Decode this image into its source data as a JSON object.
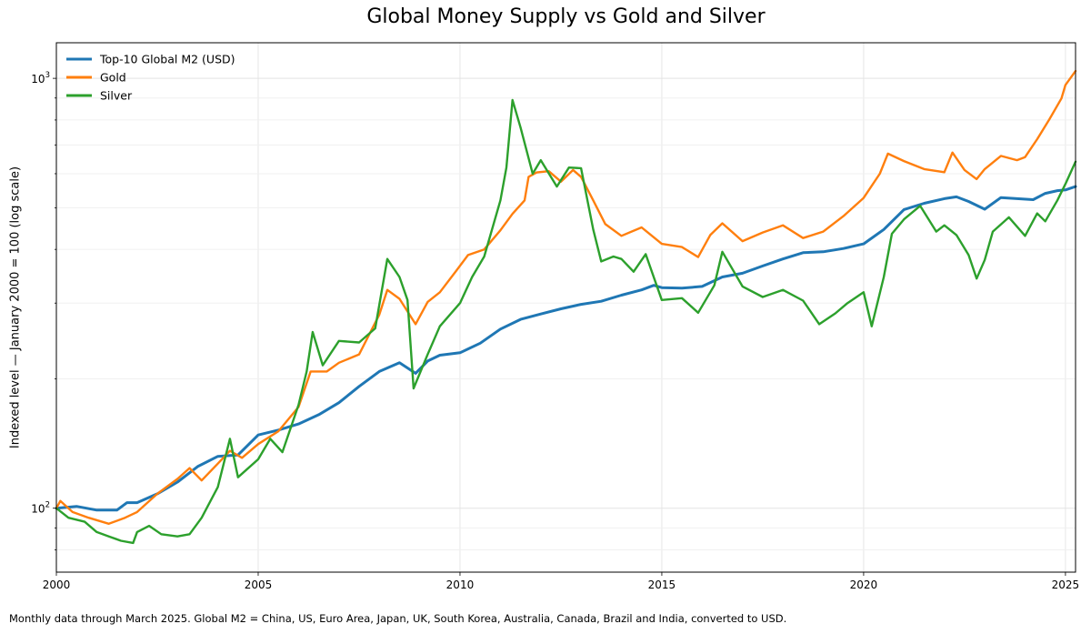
{
  "chart_data": {
    "type": "line",
    "title": "Global Money Supply vs Gold and Silver",
    "ylabel": "Indexed level — January 2000 = 100 (log scale)",
    "xlabel": "",
    "yscale": "log",
    "xlim": [
      2000.0,
      2025.25
    ],
    "ylim": [
      71,
      1210
    ],
    "xticks": [
      2000,
      2005,
      2010,
      2015,
      2020,
      2025
    ],
    "yticks": [
      100,
      1000
    ],
    "ytick_labels": [
      {
        "base": "10",
        "exp": "2"
      },
      {
        "base": "10",
        "exp": "3"
      }
    ],
    "grid": true,
    "legend": "top-left",
    "footnote": "Monthly data through March 2025. Global M2 = China, US, Euro Area, Japan, UK, South Korea, Australia, Canada, Brazil and India, converted to USD.",
    "series": [
      {
        "name": "Top-10 Global M2 (USD)",
        "color": "#1f77b4",
        "points": [
          [
            2000.0,
            100
          ],
          [
            2000.5,
            101
          ],
          [
            2001.0,
            99
          ],
          [
            2001.5,
            99
          ],
          [
            2001.75,
            103
          ],
          [
            2002.0,
            103
          ],
          [
            2002.5,
            108
          ],
          [
            2003.0,
            115
          ],
          [
            2003.5,
            125
          ],
          [
            2004.0,
            132
          ],
          [
            2004.5,
            133
          ],
          [
            2005.0,
            148
          ],
          [
            2005.5,
            152
          ],
          [
            2006.0,
            157
          ],
          [
            2006.5,
            165
          ],
          [
            2007.0,
            176
          ],
          [
            2007.5,
            192
          ],
          [
            2008.0,
            208
          ],
          [
            2008.5,
            218
          ],
          [
            2008.9,
            206
          ],
          [
            2009.2,
            220
          ],
          [
            2009.5,
            227
          ],
          [
            2010.0,
            230
          ],
          [
            2010.5,
            242
          ],
          [
            2011.0,
            261
          ],
          [
            2011.5,
            275
          ],
          [
            2012.0,
            283
          ],
          [
            2012.5,
            291
          ],
          [
            2013.0,
            298
          ],
          [
            2013.5,
            303
          ],
          [
            2014.0,
            313
          ],
          [
            2014.5,
            322
          ],
          [
            2014.8,
            330
          ],
          [
            2015.0,
            326
          ],
          [
            2015.5,
            325
          ],
          [
            2016.0,
            328
          ],
          [
            2016.5,
            345
          ],
          [
            2017.0,
            352
          ],
          [
            2017.5,
            366
          ],
          [
            2018.0,
            380
          ],
          [
            2018.5,
            393
          ],
          [
            2019.0,
            395
          ],
          [
            2019.5,
            402
          ],
          [
            2020.0,
            412
          ],
          [
            2020.5,
            445
          ],
          [
            2021.0,
            495
          ],
          [
            2021.5,
            512
          ],
          [
            2022.0,
            525
          ],
          [
            2022.3,
            530
          ],
          [
            2022.6,
            517
          ],
          [
            2023.0,
            496
          ],
          [
            2023.4,
            528
          ],
          [
            2023.8,
            525
          ],
          [
            2024.2,
            522
          ],
          [
            2024.5,
            540
          ],
          [
            2024.8,
            548
          ],
          [
            2025.0,
            550
          ],
          [
            2025.25,
            560
          ]
        ]
      },
      {
        "name": "Gold",
        "color": "#ff7f0e",
        "points": [
          [
            2000.0,
            100
          ],
          [
            2000.1,
            104
          ],
          [
            2000.4,
            98
          ],
          [
            2000.8,
            95
          ],
          [
            2001.3,
            92
          ],
          [
            2001.7,
            95
          ],
          [
            2002.0,
            98
          ],
          [
            2002.5,
            108
          ],
          [
            2003.0,
            117
          ],
          [
            2003.3,
            124
          ],
          [
            2003.6,
            116
          ],
          [
            2004.0,
            127
          ],
          [
            2004.3,
            136
          ],
          [
            2004.6,
            131
          ],
          [
            2005.0,
            141
          ],
          [
            2005.5,
            151
          ],
          [
            2006.0,
            172
          ],
          [
            2006.3,
            208
          ],
          [
            2006.7,
            208
          ],
          [
            2007.0,
            218
          ],
          [
            2007.5,
            228
          ],
          [
            2008.0,
            282
          ],
          [
            2008.2,
            322
          ],
          [
            2008.5,
            307
          ],
          [
            2008.9,
            268
          ],
          [
            2009.2,
            302
          ],
          [
            2009.5,
            318
          ],
          [
            2009.9,
            356
          ],
          [
            2010.2,
            388
          ],
          [
            2010.6,
            400
          ],
          [
            2011.0,
            443
          ],
          [
            2011.3,
            484
          ],
          [
            2011.6,
            520
          ],
          [
            2011.7,
            590
          ],
          [
            2011.9,
            604
          ],
          [
            2012.2,
            608
          ],
          [
            2012.5,
            575
          ],
          [
            2012.8,
            612
          ],
          [
            2013.0,
            590
          ],
          [
            2013.3,
            520
          ],
          [
            2013.6,
            458
          ],
          [
            2014.0,
            430
          ],
          [
            2014.5,
            450
          ],
          [
            2015.0,
            412
          ],
          [
            2015.5,
            405
          ],
          [
            2015.9,
            384
          ],
          [
            2016.2,
            432
          ],
          [
            2016.5,
            460
          ],
          [
            2017.0,
            418
          ],
          [
            2017.5,
            438
          ],
          [
            2018.0,
            455
          ],
          [
            2018.5,
            425
          ],
          [
            2019.0,
            440
          ],
          [
            2019.5,
            478
          ],
          [
            2020.0,
            527
          ],
          [
            2020.4,
            600
          ],
          [
            2020.6,
            668
          ],
          [
            2021.0,
            642
          ],
          [
            2021.5,
            615
          ],
          [
            2022.0,
            605
          ],
          [
            2022.2,
            672
          ],
          [
            2022.5,
            612
          ],
          [
            2022.8,
            583
          ],
          [
            2023.0,
            615
          ],
          [
            2023.4,
            660
          ],
          [
            2023.8,
            645
          ],
          [
            2024.0,
            656
          ],
          [
            2024.3,
            722
          ],
          [
            2024.6,
            802
          ],
          [
            2024.9,
            898
          ],
          [
            2025.0,
            965
          ],
          [
            2025.25,
            1040
          ]
        ]
      },
      {
        "name": "Silver",
        "color": "#2ca02c",
        "points": [
          [
            2000.0,
            100
          ],
          [
            2000.3,
            95
          ],
          [
            2000.7,
            93
          ],
          [
            2001.0,
            88
          ],
          [
            2001.3,
            86
          ],
          [
            2001.6,
            84
          ],
          [
            2001.9,
            83
          ],
          [
            2002.0,
            88
          ],
          [
            2002.3,
            91
          ],
          [
            2002.6,
            87
          ],
          [
            2003.0,
            86
          ],
          [
            2003.3,
            87
          ],
          [
            2003.6,
            95
          ],
          [
            2004.0,
            112
          ],
          [
            2004.3,
            145
          ],
          [
            2004.5,
            118
          ],
          [
            2005.0,
            130
          ],
          [
            2005.3,
            145
          ],
          [
            2005.6,
            135
          ],
          [
            2006.0,
            174
          ],
          [
            2006.2,
            208
          ],
          [
            2006.35,
            257
          ],
          [
            2006.6,
            215
          ],
          [
            2007.0,
            245
          ],
          [
            2007.5,
            243
          ],
          [
            2007.9,
            262
          ],
          [
            2008.2,
            380
          ],
          [
            2008.5,
            345
          ],
          [
            2008.7,
            305
          ],
          [
            2008.85,
            190
          ],
          [
            2009.2,
            228
          ],
          [
            2009.5,
            265
          ],
          [
            2010.0,
            300
          ],
          [
            2010.3,
            345
          ],
          [
            2010.6,
            385
          ],
          [
            2011.0,
            520
          ],
          [
            2011.15,
            620
          ],
          [
            2011.3,
            890
          ],
          [
            2011.5,
            768
          ],
          [
            2011.8,
            600
          ],
          [
            2012.0,
            645
          ],
          [
            2012.4,
            560
          ],
          [
            2012.7,
            620
          ],
          [
            2013.0,
            618
          ],
          [
            2013.3,
            445
          ],
          [
            2013.5,
            375
          ],
          [
            2013.8,
            385
          ],
          [
            2014.0,
            380
          ],
          [
            2014.3,
            355
          ],
          [
            2014.6,
            390
          ],
          [
            2015.0,
            305
          ],
          [
            2015.5,
            308
          ],
          [
            2015.9,
            285
          ],
          [
            2016.3,
            330
          ],
          [
            2016.5,
            395
          ],
          [
            2017.0,
            328
          ],
          [
            2017.5,
            310
          ],
          [
            2018.0,
            322
          ],
          [
            2018.5,
            304
          ],
          [
            2018.9,
            268
          ],
          [
            2019.3,
            284
          ],
          [
            2019.6,
            300
          ],
          [
            2020.0,
            318
          ],
          [
            2020.2,
            265
          ],
          [
            2020.5,
            345
          ],
          [
            2020.7,
            435
          ],
          [
            2021.0,
            470
          ],
          [
            2021.4,
            505
          ],
          [
            2021.8,
            440
          ],
          [
            2022.0,
            455
          ],
          [
            2022.3,
            432
          ],
          [
            2022.6,
            388
          ],
          [
            2022.8,
            342
          ],
          [
            2023.0,
            378
          ],
          [
            2023.2,
            440
          ],
          [
            2023.6,
            475
          ],
          [
            2024.0,
            430
          ],
          [
            2024.3,
            485
          ],
          [
            2024.5,
            465
          ],
          [
            2024.8,
            520
          ],
          [
            2025.0,
            568
          ],
          [
            2025.25,
            640
          ]
        ]
      }
    ]
  }
}
